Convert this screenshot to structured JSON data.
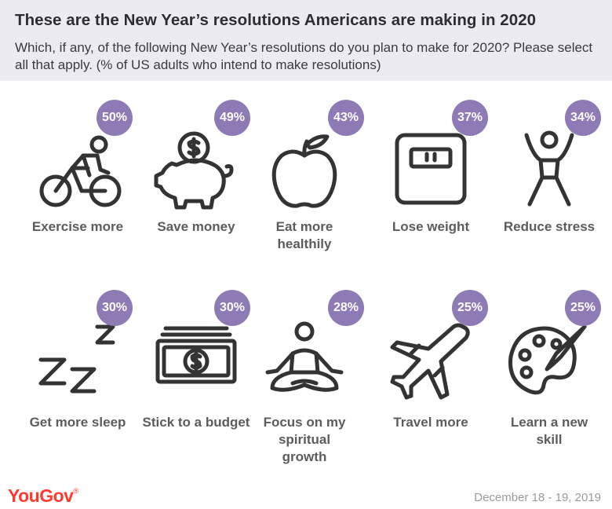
{
  "header": {
    "title": "These are the New Year’s resolutions Americans are making in 2020",
    "subtitle": "Which, if any, of the following New Year’s resolutions do you plan to make for 2020? Please select all that apply. (% of US adults who intend to make resolutions)"
  },
  "chart_data": {
    "type": "table",
    "title": "These are the New Year’s resolutions Americans are making in 2020",
    "subtitle": "Which, if any, of the following New Year’s resolutions do you plan to make for 2020? Please select all that apply. (% of US adults who intend to make resolutions)",
    "unit": "%",
    "categories": [
      "Exercise more",
      "Save money",
      "Eat more healthily",
      "Lose weight",
      "Reduce stress",
      "Get more sleep",
      "Stick to a budget",
      "Focus on my spiritual growth",
      "Travel more",
      "Learn a new skill"
    ],
    "values": [
      50,
      49,
      43,
      37,
      34,
      30,
      30,
      28,
      25,
      25
    ],
    "items": [
      {
        "label_lines": [
          "Exercise more"
        ],
        "value": 50,
        "badge": "50%",
        "icon": "cyclist-icon"
      },
      {
        "label_lines": [
          "Save money"
        ],
        "value": 49,
        "badge": "49%",
        "icon": "piggy-bank-icon"
      },
      {
        "label_lines": [
          "Eat more",
          "healthily"
        ],
        "value": 43,
        "badge": "43%",
        "icon": "apple-icon"
      },
      {
        "label_lines": [
          "Lose weight"
        ],
        "value": 37,
        "badge": "37%",
        "icon": "scale-icon"
      },
      {
        "label_lines": [
          "Reduce stress"
        ],
        "value": 34,
        "badge": "34%",
        "icon": "stretching-person-icon"
      },
      {
        "label_lines": [
          "Get more sleep"
        ],
        "value": 30,
        "badge": "30%",
        "icon": "zzz-icon"
      },
      {
        "label_lines": [
          "Stick to a budget"
        ],
        "value": 30,
        "badge": "30%",
        "icon": "banknotes-icon"
      },
      {
        "label_lines": [
          "Focus on my",
          "spiritual",
          "growth"
        ],
        "value": 28,
        "badge": "28%",
        "icon": "meditation-icon"
      },
      {
        "label_lines": [
          "Travel more"
        ],
        "value": 25,
        "badge": "25%",
        "icon": "airplane-icon"
      },
      {
        "label_lines": [
          "Learn a new",
          "skill"
        ],
        "value": 25,
        "badge": "25%",
        "icon": "palette-icon"
      }
    ]
  },
  "colors": {
    "badge": "#8e7ab5",
    "icon_stroke": "#333333",
    "header_bg": "#ecebf2",
    "brand": "#ff3b30"
  },
  "footer": {
    "brand": "YouGov",
    "brand_mark": "®",
    "date": "December 18 - 19, 2019"
  }
}
